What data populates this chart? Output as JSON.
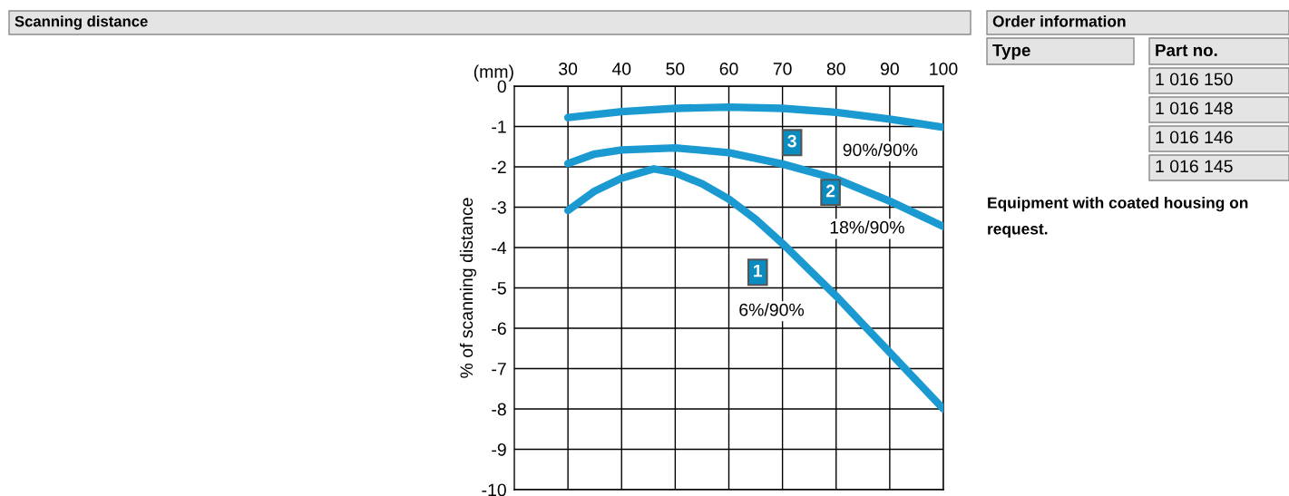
{
  "chart_data": {
    "type": "line",
    "title": "Scanning distance",
    "xlabel": "(mm)",
    "ylabel": "% of scanning distance",
    "xlim": [
      20,
      100
    ],
    "xticks": [
      30,
      40,
      50,
      60,
      70,
      80,
      90,
      100
    ],
    "ylim": [
      -10,
      0
    ],
    "yticks": [
      0,
      -1,
      -2,
      -3,
      -4,
      -5,
      -6,
      -7,
      -8,
      -9,
      -10
    ],
    "grid": true,
    "marker": "none",
    "line_style": "solid",
    "series": [
      {
        "name": "6%/90%",
        "color": "#1b9ad1",
        "x": [
          30,
          35,
          40,
          46,
          50,
          55,
          60,
          65,
          70,
          75,
          80,
          85,
          90,
          95,
          100
        ],
        "values": [
          -3.08,
          -2.6,
          -2.28,
          -2.05,
          -2.15,
          -2.42,
          -2.8,
          -3.3,
          -3.9,
          -4.55,
          -5.2,
          -5.9,
          -6.6,
          -7.3,
          -8.0
        ]
      },
      {
        "name": "18%/90%",
        "color": "#1b9ad1",
        "x": [
          30,
          35,
          40,
          50,
          60,
          70,
          80,
          90,
          100
        ],
        "values": [
          -1.92,
          -1.68,
          -1.58,
          -1.53,
          -1.65,
          -1.93,
          -2.3,
          -2.85,
          -3.48
        ]
      },
      {
        "name": "90%/90%",
        "color": "#1b9ad1",
        "x": [
          30,
          40,
          50,
          60,
          70,
          80,
          90,
          100
        ],
        "values": [
          -0.78,
          -0.63,
          -0.55,
          -0.52,
          -0.55,
          -0.65,
          -0.82,
          -1.02
        ]
      }
    ],
    "annotations": [
      "1",
      "2",
      "3",
      "Order information",
      "Type",
      "Part no.",
      "1 016 150",
      "1 016 148",
      "1 016 146",
      "1 016 145",
      "Equipment with coated housing on request."
    ]
  }
}
